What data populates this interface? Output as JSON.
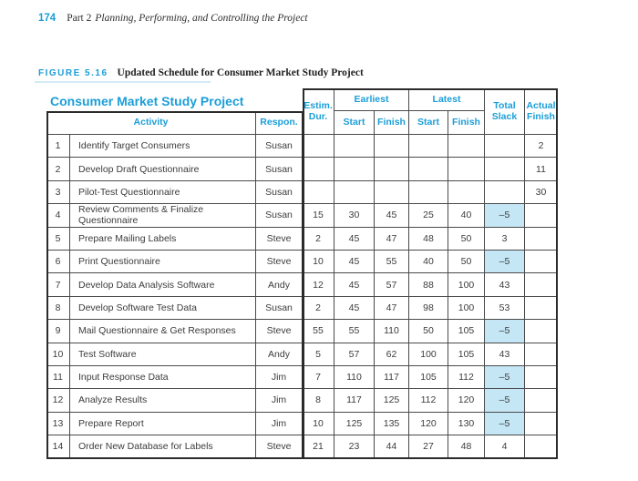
{
  "page_header": {
    "page_number": "174",
    "part_label": "Part 2",
    "part_title": "Planning, Performing, and Controlling the Project"
  },
  "figure": {
    "label": "FIGURE 5.16",
    "caption": "Updated Schedule for Consumer Market Study Project"
  },
  "table": {
    "title": "Consumer Market Study Project",
    "headers": {
      "activity": "Activity",
      "respon": "Respon.",
      "estim_dur": "Estim.\nDur.",
      "earliest": "Earliest",
      "latest": "Latest",
      "start": "Start",
      "finish": "Finish",
      "total_slack": "Total\nSlack",
      "actual_finish": "Actual\nFinish"
    },
    "rows": [
      {
        "num": "1",
        "activity": "Identify Target Consumers",
        "respon": "Susan",
        "dur": "",
        "es": "",
        "ef": "",
        "ls": "",
        "lf": "",
        "slack": "",
        "slack_highlight": false,
        "actual": "2"
      },
      {
        "num": "2",
        "activity": "Develop Draft Questionnaire",
        "respon": "Susan",
        "dur": "",
        "es": "",
        "ef": "",
        "ls": "",
        "lf": "",
        "slack": "",
        "slack_highlight": false,
        "actual": "11"
      },
      {
        "num": "3",
        "activity": "Pilot-Test Questionnaire",
        "respon": "Susan",
        "dur": "",
        "es": "",
        "ef": "",
        "ls": "",
        "lf": "",
        "slack": "",
        "slack_highlight": false,
        "actual": "30"
      },
      {
        "num": "4",
        "activity": "Review Comments & Finalize Questionnaire",
        "respon": "Susan",
        "dur": "15",
        "es": "30",
        "ef": "45",
        "ls": "25",
        "lf": "40",
        "slack": "–5",
        "slack_highlight": true,
        "actual": ""
      },
      {
        "num": "5",
        "activity": "Prepare Mailing Labels",
        "respon": "Steve",
        "dur": "2",
        "es": "45",
        "ef": "47",
        "ls": "48",
        "lf": "50",
        "slack": "3",
        "slack_highlight": false,
        "actual": ""
      },
      {
        "num": "6",
        "activity": "Print Questionnaire",
        "respon": "Steve",
        "dur": "10",
        "es": "45",
        "ef": "55",
        "ls": "40",
        "lf": "50",
        "slack": "–5",
        "slack_highlight": true,
        "actual": ""
      },
      {
        "num": "7",
        "activity": "Develop Data Analysis Software",
        "respon": "Andy",
        "dur": "12",
        "es": "45",
        "ef": "57",
        "ls": "88",
        "lf": "100",
        "slack": "43",
        "slack_highlight": false,
        "actual": ""
      },
      {
        "num": "8",
        "activity": "Develop Software Test Data",
        "respon": "Susan",
        "dur": "2",
        "es": "45",
        "ef": "47",
        "ls": "98",
        "lf": "100",
        "slack": "53",
        "slack_highlight": false,
        "actual": ""
      },
      {
        "num": "9",
        "activity": "Mail Questionnaire & Get Responses",
        "respon": "Steve",
        "dur": "55",
        "es": "55",
        "ef": "110",
        "ls": "50",
        "lf": "105",
        "slack": "–5",
        "slack_highlight": true,
        "actual": ""
      },
      {
        "num": "10",
        "activity": "Test Software",
        "respon": "Andy",
        "dur": "5",
        "es": "57",
        "ef": "62",
        "ls": "100",
        "lf": "105",
        "slack": "43",
        "slack_highlight": false,
        "actual": ""
      },
      {
        "num": "11",
        "activity": "Input Response Data",
        "respon": "Jim",
        "dur": "7",
        "es": "110",
        "ef": "117",
        "ls": "105",
        "lf": "112",
        "slack": "–5",
        "slack_highlight": true,
        "actual": ""
      },
      {
        "num": "12",
        "activity": "Analyze Results",
        "respon": "Jim",
        "dur": "8",
        "es": "117",
        "ef": "125",
        "ls": "112",
        "lf": "120",
        "slack": "–5",
        "slack_highlight": true,
        "actual": ""
      },
      {
        "num": "13",
        "activity": "Prepare Report",
        "respon": "Jim",
        "dur": "10",
        "es": "125",
        "ef": "135",
        "ls": "120",
        "lf": "130",
        "slack": "–5",
        "slack_highlight": true,
        "actual": ""
      },
      {
        "num": "14",
        "activity": "Order New Database for Labels",
        "respon": "Steve",
        "dur": "21",
        "es": "23",
        "ef": "44",
        "ls": "27",
        "lf": "48",
        "slack": "4",
        "slack_highlight": false,
        "actual": ""
      }
    ]
  },
  "colors": {
    "accent": "#1b9ed8",
    "slack_highlight": "#c4e6f5"
  }
}
